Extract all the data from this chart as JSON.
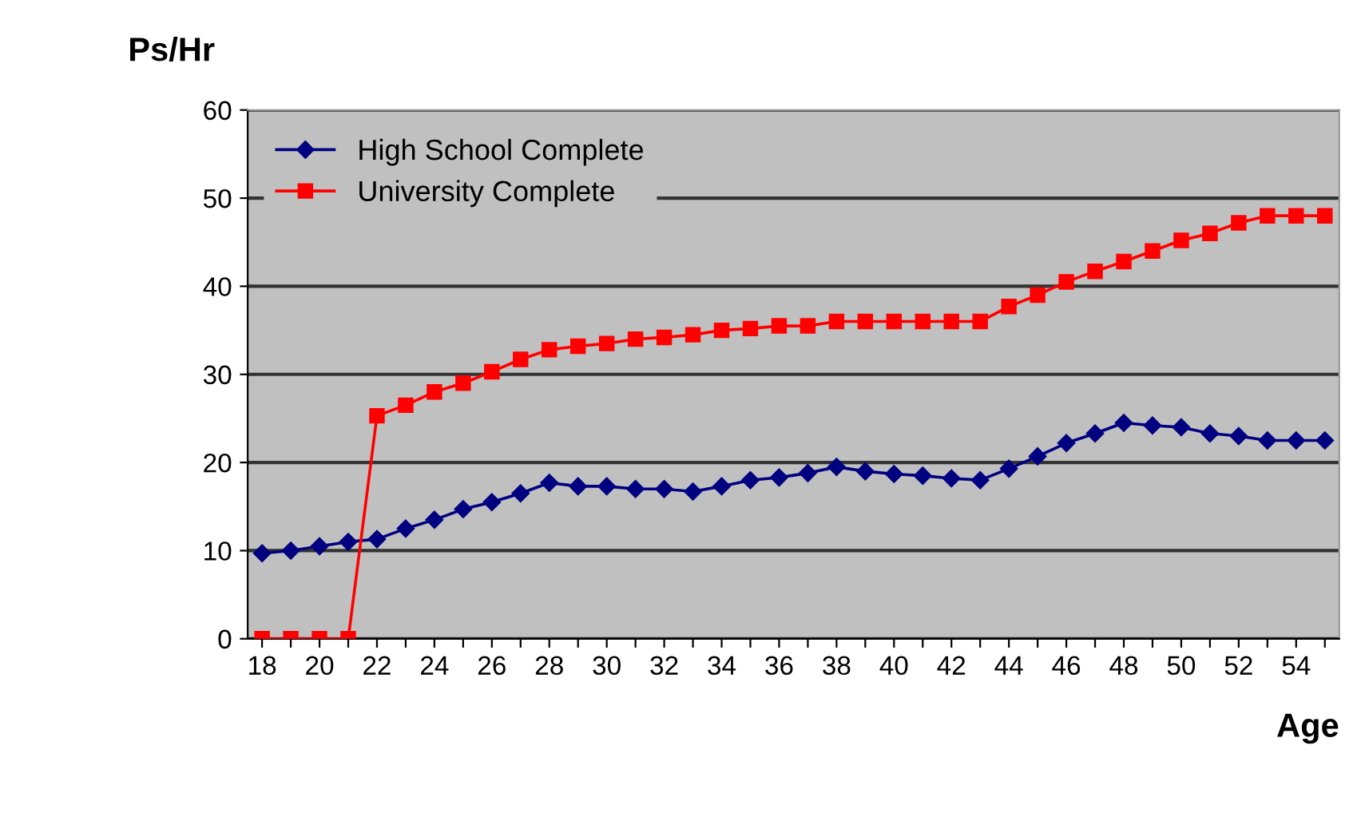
{
  "chart_data": {
    "type": "line",
    "xlabel": "Age",
    "ylabel": "Ps/Hr",
    "categories": [
      "18",
      null,
      "20",
      null,
      "22",
      null,
      "24",
      null,
      "26",
      null,
      "28",
      null,
      "30",
      null,
      "32",
      null,
      "34",
      null,
      "36",
      null,
      "38",
      null,
      "40",
      null,
      "42",
      null,
      "44",
      null,
      "46",
      null,
      "48",
      null,
      "50",
      null,
      "52",
      null,
      "54",
      null
    ],
    "series": [
      {
        "name": "High School Complete",
        "color": "#000080",
        "marker": "diamond",
        "values": [
          9.7,
          10,
          10.5,
          11,
          11.3,
          12.5,
          13.5,
          14.7,
          15.5,
          16.5,
          17.7,
          17.3,
          17.3,
          17,
          17,
          16.7,
          17.3,
          18,
          18.3,
          18.8,
          19.5,
          19,
          18.7,
          18.5,
          18.2,
          18,
          19.3,
          20.7,
          22.2,
          23.3,
          24.5,
          24.2,
          24,
          23.3,
          23,
          22.5,
          22.5,
          22.5
        ]
      },
      {
        "name": "University Complete",
        "color": "#ff0000",
        "marker": "square",
        "values": [
          0,
          0,
          0,
          0,
          25.3,
          26.5,
          28,
          29,
          30.3,
          31.7,
          32.8,
          33.2,
          33.5,
          34,
          34.2,
          34.5,
          35,
          35.2,
          35.5,
          35.5,
          36,
          36,
          36,
          36,
          36,
          36,
          37.7,
          39,
          40.5,
          41.7,
          42.8,
          44,
          45.2,
          46,
          47.2,
          48,
          48,
          48
        ]
      }
    ],
    "ylim": [
      0,
      60
    ],
    "yticks": [
      0,
      10,
      20,
      30,
      40,
      50,
      60
    ],
    "grid": "y",
    "legend": "top left"
  }
}
